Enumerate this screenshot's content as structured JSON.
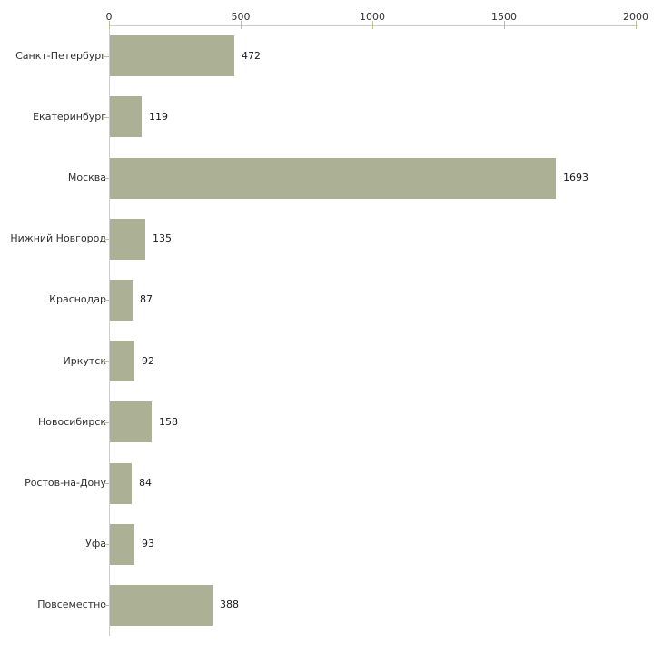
{
  "chart_data": {
    "type": "bar",
    "orientation": "horizontal",
    "title": "",
    "xlabel": "",
    "ylabel": "",
    "categories": [
      "Санкт-Петербург",
      "Екатеринбург",
      "Москва",
      "Нижний Новгород",
      "Краснодар",
      "Иркутск",
      "Новосибирск",
      "Ростов-на-Дону",
      "Уфа",
      "Повсеместно"
    ],
    "values": [
      472,
      119,
      1693,
      135,
      87,
      92,
      158,
      84,
      93,
      388
    ],
    "value_labels": [
      "472",
      "119",
      "1693",
      "135",
      "87",
      "92",
      "158",
      "84",
      "93",
      "388"
    ],
    "x_ticks": [
      0,
      500,
      1000,
      1500,
      2000
    ],
    "x_tick_labels": [
      "0",
      "500",
      "1000",
      "1500",
      "2000"
    ],
    "xlim": [
      0,
      2000
    ],
    "x_axis_position": "top",
    "grid": false,
    "legend": "none",
    "colors": {
      "bar_fill": "#acb195",
      "axis_line": "#cccccc",
      "tick_mark": "#c3c097",
      "tick_text": "#303030",
      "value_text": "#1a1a1a",
      "background": "#ffffff"
    }
  }
}
